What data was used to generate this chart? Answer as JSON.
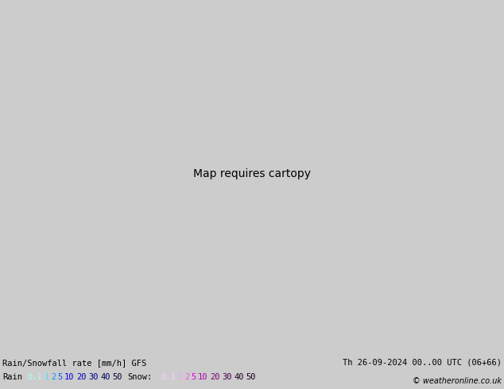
{
  "title_left": "Rain/Snowfall rate [mm/h] GFS",
  "title_right": "Th 26-09-2024 00..00 UTC (06+66)",
  "copyright": "© weatheronline.co.uk",
  "legend_rain_label": "Rain",
  "legend_snow_label": "Snow:",
  "rain_labels": [
    "0.1",
    "1",
    "2",
    "5",
    "10",
    "20",
    "30",
    "40",
    "50"
  ],
  "rain_text_colors": [
    "#aaffff",
    "#55ddff",
    "#0099ff",
    "#0055ff",
    "#0000ee",
    "#0000bb",
    "#000088",
    "#000055",
    "#000033"
  ],
  "snow_labels": [
    "0.1",
    "1",
    "2",
    "5",
    "10",
    "20",
    "30",
    "40",
    "50"
  ],
  "snow_text_colors": [
    "#ffccff",
    "#ff99ff",
    "#ff55ff",
    "#dd00dd",
    "#aa00aa",
    "#770077",
    "#440044",
    "#220022",
    "#110011"
  ],
  "ocean_color": "#ddeeff",
  "land_color": "#c8e6a0",
  "border_color": "#777777",
  "mountain_color": "#aaaaaa",
  "bg_color": "#cccccc",
  "legend_bg": "#cccccc",
  "fig_width": 6.34,
  "fig_height": 4.9,
  "dpi": 100
}
